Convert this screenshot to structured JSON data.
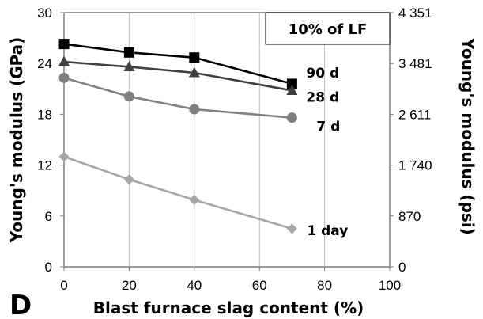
{
  "chart_data": {
    "type": "line",
    "panel_label": "D",
    "legend_box": "10% of LF",
    "xlabel": "Blast furnace slag content (%)",
    "ylabel_left": "Young's modulus (GPa)",
    "ylabel_right": "Young's modulus (psi)",
    "xlim": [
      0,
      100
    ],
    "ylim": [
      0,
      30
    ],
    "x_ticks": [
      "0",
      "20",
      "40",
      "60",
      "80",
      "100"
    ],
    "y_ticks_left": [
      "0",
      "6",
      "12",
      "18",
      "24",
      "30"
    ],
    "y_ticks_right": [
      "0",
      "870",
      "1 740",
      "2 611",
      "3 481",
      "4 351"
    ],
    "grid": "vertical",
    "series": [
      {
        "name": "90 d",
        "marker": "square",
        "color": "#000000",
        "x": [
          0,
          20,
          40,
          70
        ],
        "values": [
          26.3,
          25.3,
          24.7,
          21.6
        ]
      },
      {
        "name": "28 d",
        "marker": "triangle",
        "color": "#404040",
        "x": [
          0,
          20,
          40,
          70
        ],
        "values": [
          24.2,
          23.6,
          22.9,
          20.8
        ]
      },
      {
        "name": "7 d",
        "marker": "circle",
        "color": "#808080",
        "x": [
          0,
          20,
          40,
          70
        ],
        "values": [
          22.3,
          20.1,
          18.6,
          17.6
        ]
      },
      {
        "name": "1 day",
        "marker": "diamond",
        "color": "#a6a6a6",
        "x": [
          0,
          20,
          40,
          70
        ],
        "values": [
          13.0,
          10.3,
          7.9,
          4.5
        ]
      }
    ]
  }
}
